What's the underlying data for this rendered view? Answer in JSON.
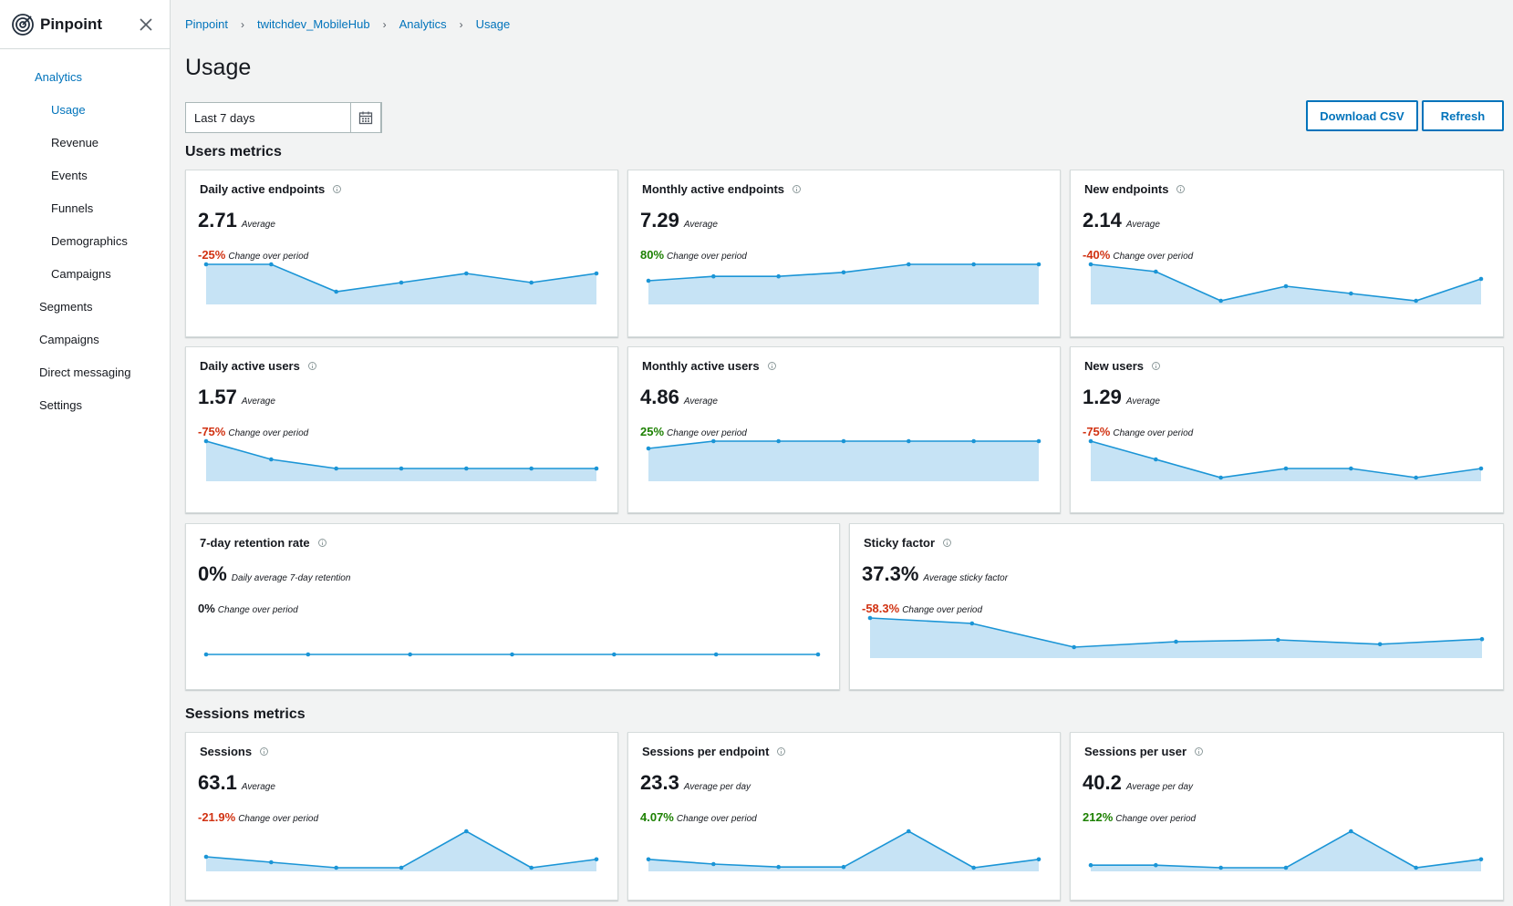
{
  "app": {
    "title": "Pinpoint"
  },
  "sidebar": {
    "items": [
      {
        "label": "Analytics",
        "level": 0,
        "active": true
      },
      {
        "label": "Usage",
        "level": 1,
        "active": true
      },
      {
        "label": "Revenue",
        "level": 1
      },
      {
        "label": "Events",
        "level": 1
      },
      {
        "label": "Funnels",
        "level": 1
      },
      {
        "label": "Demographics",
        "level": 1
      },
      {
        "label": "Campaigns",
        "level": 1
      },
      {
        "label": "Segments",
        "level": 0
      },
      {
        "label": "Campaigns",
        "level": 0
      },
      {
        "label": "Direct messaging",
        "level": 0
      },
      {
        "label": "Settings",
        "level": 0
      }
    ]
  },
  "breadcrumb": [
    "Pinpoint",
    "twitchdev_MobileHub",
    "Analytics",
    "Usage"
  ],
  "page": {
    "title": "Usage"
  },
  "date_range": {
    "value": "Last 7 days"
  },
  "toolbar": {
    "download_label": "Download CSV",
    "refresh_label": "Refresh"
  },
  "sections": {
    "users": "Users metrics",
    "sessions": "Sessions metrics"
  },
  "colors": {
    "accent": "#0073bb",
    "negative": "#d13212",
    "positive": "#1d8102",
    "spark_line": "#1b95d6",
    "spark_fill": "#c6e3f5"
  },
  "cards": [
    {
      "title": "Daily active endpoints",
      "value": "2.71",
      "value_label": "Average",
      "change": "-25%",
      "change_label": "Change over period",
      "trend": "negative",
      "series": [
        1,
        1,
        0.25,
        0.5,
        0.75,
        0.5,
        0.75
      ]
    },
    {
      "title": "Monthly active endpoints",
      "value": "7.29",
      "value_label": "Average",
      "change": "80%",
      "change_label": "Change over period",
      "trend": "positive",
      "series": [
        0.55,
        0.67,
        0.67,
        0.78,
        1,
        1,
        1
      ]
    },
    {
      "title": "New endpoints",
      "value": "2.14",
      "value_label": "Average",
      "change": "-40%",
      "change_label": "Change over period",
      "trend": "negative",
      "series": [
        1,
        0.8,
        0,
        0.4,
        0.2,
        0,
        0.6
      ]
    },
    {
      "title": "Daily active users",
      "value": "1.57",
      "value_label": "Average",
      "change": "-75%",
      "change_label": "Change over period",
      "trend": "negative",
      "series": [
        1,
        0.5,
        0.25,
        0.25,
        0.25,
        0.25,
        0.25
      ]
    },
    {
      "title": "Monthly active users",
      "value": "4.86",
      "value_label": "Average",
      "change": "25%",
      "change_label": "Change over period",
      "trend": "positive",
      "series": [
        0.8,
        1,
        1,
        1,
        1,
        1,
        1
      ]
    },
    {
      "title": "New users",
      "value": "1.29",
      "value_label": "Average",
      "change": "-75%",
      "change_label": "Change over period",
      "trend": "negative",
      "series": [
        1,
        0.5,
        0,
        0.25,
        0.25,
        0,
        0.25
      ]
    },
    {
      "title": "7-day retention rate",
      "value": "0%",
      "value_label": "Daily average 7-day retention",
      "change": "0%",
      "change_label": "Change over period",
      "trend": "neutral",
      "series": [
        0,
        0,
        0,
        0,
        0,
        0,
        0
      ]
    },
    {
      "title": "Sticky factor",
      "value": "37.3%",
      "value_label": "Average sticky factor",
      "change": "-58.3%",
      "change_label": "Change over period",
      "trend": "negative",
      "series": [
        1,
        0.85,
        0.2,
        0.35,
        0.4,
        0.28,
        0.42
      ]
    },
    {
      "title": "Sessions",
      "value": "63.1",
      "value_label": "Average",
      "change": "-21.9%",
      "change_label": "Change over period",
      "trend": "negative",
      "series": [
        0.3,
        0.15,
        0,
        0,
        1,
        0,
        0.23
      ]
    },
    {
      "title": "Sessions per endpoint",
      "value": "23.3",
      "value_label": "Average per day",
      "change": "4.07%",
      "change_label": "Change over period",
      "trend": "positive",
      "series": [
        0.23,
        0.1,
        0.02,
        0.02,
        1,
        0,
        0.23
      ]
    },
    {
      "title": "Sessions per user",
      "value": "40.2",
      "value_label": "Average per day",
      "change": "212%",
      "change_label": "Change over period",
      "trend": "positive",
      "series": [
        0.07,
        0.07,
        0,
        0,
        1,
        0,
        0.23
      ]
    }
  ]
}
